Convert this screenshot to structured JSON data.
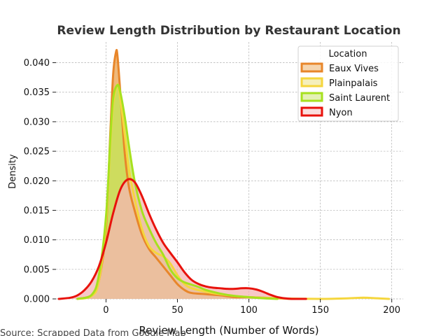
{
  "chart_data": {
    "type": "area",
    "title": "Review Length Distribution by Restaurant Location",
    "xlabel": "Review Length (Number of Words)",
    "ylabel": "Density",
    "xlim": [
      -35,
      208
    ],
    "ylim": [
      0,
      0.0435
    ],
    "xticks": [
      0,
      50,
      100,
      150,
      200
    ],
    "yticks": [
      0.0,
      0.005,
      0.01,
      0.015,
      0.02,
      0.025,
      0.03,
      0.035,
      0.04
    ],
    "ytick_labels": [
      "0.000",
      "0.005",
      "0.010",
      "0.015",
      "0.020",
      "0.025",
      "0.030",
      "0.035",
      "0.040"
    ],
    "grid": true,
    "legend": {
      "title": "Location",
      "position": "top-right"
    },
    "source": "Source: Scrapped Data from Google Map",
    "series": [
      {
        "name": "Eaux Vives",
        "color": "#e8862a",
        "fill": "#e9a24d",
        "x": [
          -20,
          -10,
          -5,
          0,
          3,
          5,
          7,
          8,
          10,
          13,
          16,
          20,
          25,
          30,
          35,
          40,
          45,
          50,
          55,
          60,
          70,
          80,
          90,
          100,
          110,
          120,
          130
        ],
        "y": [
          0.0,
          0.0006,
          0.003,
          0.012,
          0.028,
          0.038,
          0.0418,
          0.0412,
          0.035,
          0.025,
          0.019,
          0.015,
          0.011,
          0.0085,
          0.007,
          0.0055,
          0.004,
          0.0025,
          0.0015,
          0.001,
          0.0008,
          0.0006,
          0.0003,
          0.0003,
          0.0002,
          0.0001,
          0.0
        ]
      },
      {
        "name": "Plainpalais",
        "color": "#f5d63d",
        "fill": "#e8dc6a",
        "x": [
          -20,
          -10,
          -5,
          0,
          3,
          5,
          8,
          10,
          13,
          16,
          20,
          25,
          30,
          35,
          40,
          45,
          50,
          55,
          60,
          70,
          80,
          90,
          100,
          120,
          150,
          170,
          180,
          190,
          198
        ],
        "y": [
          0.0,
          0.0005,
          0.003,
          0.013,
          0.026,
          0.033,
          0.0363,
          0.034,
          0.028,
          0.022,
          0.017,
          0.012,
          0.009,
          0.0078,
          0.0072,
          0.006,
          0.004,
          0.0025,
          0.0018,
          0.0012,
          0.0008,
          0.0005,
          0.0003,
          0.0001,
          0.0,
          0.0001,
          0.0002,
          0.0001,
          0.0
        ]
      },
      {
        "name": "Saint Laurent",
        "color": "#a6e11e",
        "fill": "#c4df5a",
        "x": [
          -20,
          -10,
          -5,
          0,
          3,
          5,
          8,
          10,
          13,
          16,
          20,
          25,
          30,
          35,
          40,
          45,
          50,
          55,
          60,
          65,
          70,
          80,
          90,
          100,
          110,
          120
        ],
        "y": [
          0.0,
          0.0007,
          0.004,
          0.014,
          0.027,
          0.034,
          0.0362,
          0.035,
          0.031,
          0.026,
          0.02,
          0.015,
          0.012,
          0.0095,
          0.0075,
          0.005,
          0.0035,
          0.0028,
          0.0024,
          0.002,
          0.0015,
          0.0009,
          0.0005,
          0.0003,
          0.0001,
          0.0
        ]
      },
      {
        "name": "Nyon",
        "color": "#e8120c",
        "fill": "#f4b6b4",
        "x": [
          -33,
          -25,
          -20,
          -15,
          -10,
          -5,
          0,
          5,
          10,
          15,
          20,
          25,
          30,
          35,
          40,
          45,
          50,
          55,
          60,
          65,
          70,
          75,
          80,
          85,
          90,
          95,
          100,
          105,
          110,
          115,
          120,
          125,
          130,
          135,
          140
        ],
        "y": [
          0.0,
          0.0002,
          0.0006,
          0.0015,
          0.003,
          0.0055,
          0.0095,
          0.0145,
          0.0185,
          0.0202,
          0.0198,
          0.0175,
          0.0145,
          0.0118,
          0.0095,
          0.0078,
          0.0062,
          0.0045,
          0.0032,
          0.0025,
          0.0021,
          0.0019,
          0.0018,
          0.0017,
          0.0017,
          0.0018,
          0.0018,
          0.0016,
          0.0012,
          0.0007,
          0.0003,
          0.0001,
          0.0,
          0.0,
          0.0
        ]
      }
    ]
  }
}
